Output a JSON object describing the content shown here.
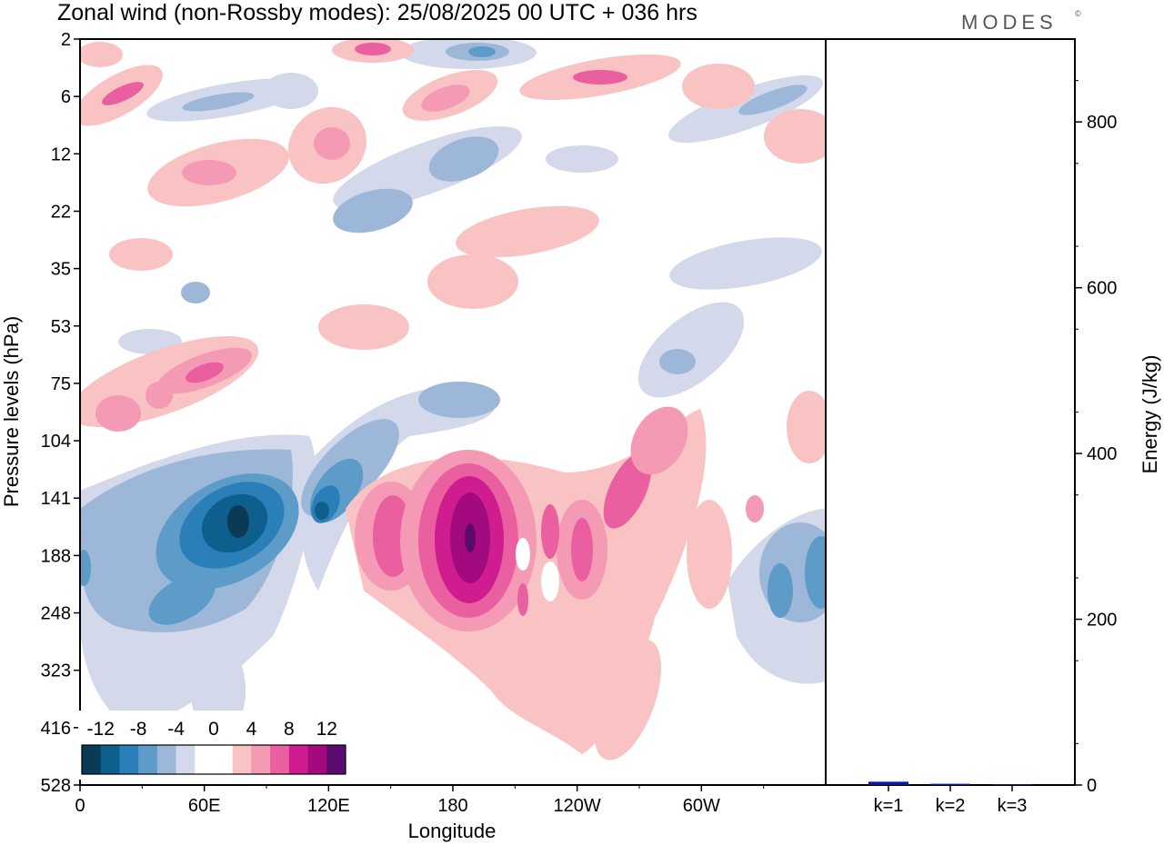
{
  "chart_data": [
    {
      "type": "heatmap",
      "title": "Zonal wind (non-Rossby modes):  25/08/2025  00 UTC  + 036 hrs",
      "xlabel": "Longitude",
      "ylabel": "Pressure levels (hPa)",
      "x_ticks": [
        "0",
        "60E",
        "120E",
        "180",
        "120W",
        "60W"
      ],
      "x_tick_values": [
        0,
        60,
        120,
        180,
        240,
        300
      ],
      "x_range": [
        0,
        360
      ],
      "y_ticks": [
        "2",
        "6",
        "12",
        "22",
        "35",
        "53",
        "75",
        "104",
        "141",
        "188",
        "248",
        "323",
        "416",
        "528"
      ],
      "colorbar": {
        "labels": [
          "-12",
          "-8",
          "-4",
          "0",
          "4",
          "8",
          "12"
        ],
        "label_values": [
          -12,
          -8,
          -4,
          0,
          4,
          8,
          12
        ],
        "levels": [
          -14,
          -12,
          -10,
          -8,
          -6,
          -4,
          -2,
          2,
          4,
          6,
          8,
          10,
          12,
          14
        ],
        "colors": [
          "#0b3a55",
          "#0f5f8e",
          "#2a7fb8",
          "#5d9bc8",
          "#9cb7d8",
          "#d3d8ea",
          "#ffffff",
          "#ffffff",
          "#f9c3c3",
          "#f59ab5",
          "#ea5f9f",
          "#cf1d8f",
          "#a30a7f",
          "#5b0a6e"
        ]
      },
      "features": [
        {
          "name": "jet-core-negative-1",
          "lon": 75,
          "level": "141-188",
          "value": -14
        },
        {
          "name": "jet-negative-2",
          "lon": 118,
          "level": "141-188",
          "value": -12
        },
        {
          "name": "jet-core-positive",
          "lon": 188,
          "level": "141-248",
          "value": 14
        },
        {
          "name": "jet-positive-2",
          "lon": 150,
          "level": "141-248",
          "value": 8
        },
        {
          "name": "jet-positive-3",
          "lon": 240,
          "level": "141-248",
          "value": 8
        },
        {
          "name": "jet-positive-4",
          "lon": 263,
          "level": "104-188",
          "value": 8
        },
        {
          "name": "negative-east",
          "lon": 358,
          "level": "141-248",
          "value": -10
        },
        {
          "name": "positive-upper-1",
          "lon": 55,
          "level": "53-104",
          "value": 8
        }
      ]
    },
    {
      "type": "bar",
      "categories": [
        "k=1",
        "k=2",
        "k=3"
      ],
      "values": [
        4,
        1.5,
        1
      ],
      "ylabel": "Energy (J/kg)",
      "y_ticks": [
        "0",
        "200",
        "400",
        "600",
        "800"
      ],
      "y_tick_values": [
        0,
        200,
        400,
        600,
        800
      ],
      "ylim": [
        0,
        900
      ],
      "bar_color": "#0a1aa0"
    }
  ],
  "brand": "MODES",
  "brand_mark": "©"
}
